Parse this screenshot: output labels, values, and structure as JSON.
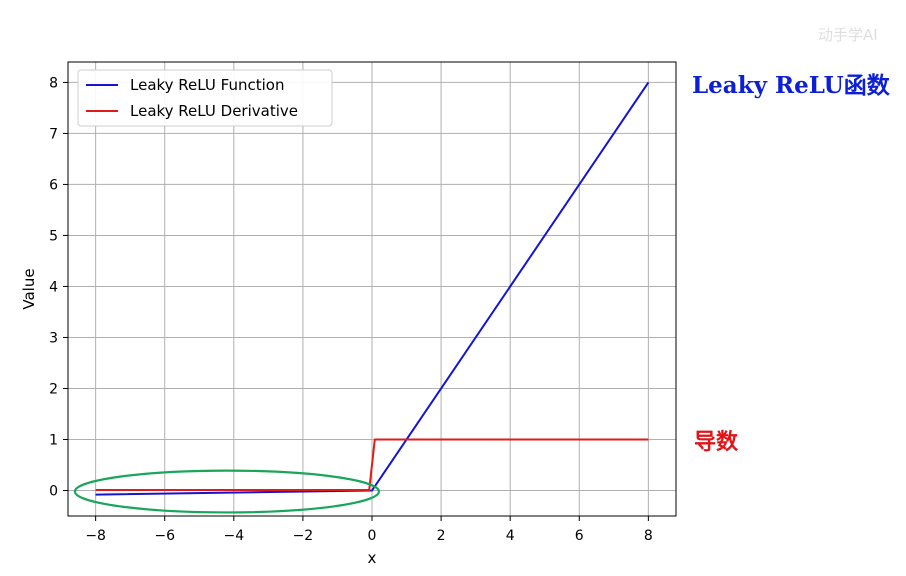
{
  "chart_data": {
    "type": "line",
    "xlabel": "x",
    "ylabel": "Value",
    "xlim": [
      -8.8,
      8.8
    ],
    "ylim": [
      -0.5,
      8.4
    ],
    "xticks": [
      -8,
      -6,
      -4,
      -2,
      0,
      2,
      4,
      6,
      8
    ],
    "yticks": [
      0,
      1,
      2,
      3,
      4,
      5,
      6,
      7,
      8
    ],
    "xtick_labels": [
      "−8",
      "−6",
      "−4",
      "−2",
      "0",
      "2",
      "4",
      "6",
      "8"
    ],
    "ytick_labels": [
      "0",
      "1",
      "2",
      "3",
      "4",
      "5",
      "6",
      "7",
      "8"
    ],
    "grid": true,
    "legend_position": "top-left",
    "series": [
      {
        "name": "Leaky ReLU Function",
        "color": "#1515d0",
        "x": [
          -8,
          0,
          8
        ],
        "y": [
          -0.08,
          0,
          8
        ]
      },
      {
        "name": "Leaky ReLU Derivative",
        "color": "#e01b1b",
        "x": [
          -8,
          -0.08,
          0.08,
          8
        ],
        "y": [
          0.01,
          0.01,
          1,
          1
        ]
      }
    ],
    "ellipse_highlight": {
      "color": "#19a65a",
      "cx": -4.2,
      "cy": -0.02,
      "rx": 4.4,
      "ry": 0.41
    }
  },
  "annotations": {
    "function_label": "Leaky ReLU函数",
    "function_label_color": "#0c1fd4",
    "derivative_label": "导数",
    "derivative_label_color": "#e0151a"
  },
  "watermark": "动手学AI"
}
